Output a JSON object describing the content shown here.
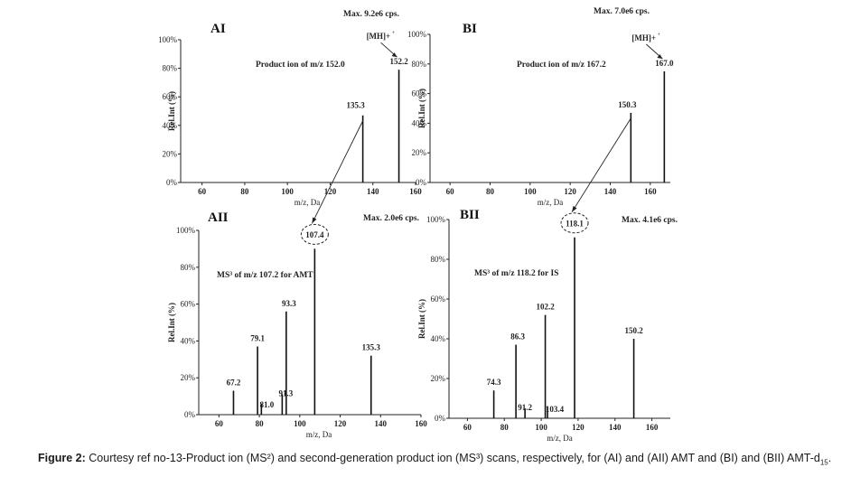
{
  "chart_data": [
    {
      "type": "bar",
      "panel": "AI",
      "max_label": "Max. 9.2e6 cps.",
      "title": "Product ion of m/z 152.0",
      "xlabel": "m/z, Da",
      "ylabel": "Rel.Int (%)",
      "xlim": [
        50,
        160
      ],
      "ylim": [
        0,
        100
      ],
      "xticks": [
        "60",
        "80",
        "100",
        "120",
        "140",
        "160"
      ],
      "yticks": [
        "0%",
        "20%",
        "40%",
        "60%",
        "80%",
        "100%"
      ],
      "x": [
        135.3,
        152.2
      ],
      "values": [
        47,
        79
      ],
      "labels": [
        "135.3",
        "152.2"
      ],
      "annotation": "[M+H]+"
    },
    {
      "type": "bar",
      "panel": "BI",
      "max_label": "Max. 7.0e6 cps.",
      "title": "Product ion of m/z 167.2",
      "xlabel": "m/z, Da",
      "ylabel": "Rel.Int (%)",
      "xlim": [
        50,
        170
      ],
      "ylim": [
        0,
        100
      ],
      "xticks": [
        "60",
        "80",
        "100",
        "120",
        "140",
        "160"
      ],
      "yticks": [
        "0%",
        "20%",
        "40%",
        "60%",
        "80%",
        "100%"
      ],
      "x": [
        150.3,
        167.0
      ],
      "values": [
        47,
        75
      ],
      "labels": [
        "150.3",
        "167.0"
      ],
      "annotation": "[M+H]+"
    },
    {
      "type": "bar",
      "panel": "AII",
      "max_label": "Max. 2.0e6 cps.",
      "title": "MS³ of m/z 107.2 for AMT",
      "xlabel": "m/z, Da",
      "ylabel": "Rel.Int (%)",
      "xlim": [
        50,
        160
      ],
      "ylim": [
        0,
        100
      ],
      "xticks": [
        "60",
        "80",
        "100",
        "120",
        "140",
        "160"
      ],
      "yticks": [
        "0%",
        "20%",
        "40%",
        "60%",
        "80%",
        "100%"
      ],
      "x": [
        67.2,
        79.1,
        81.0,
        91.3,
        93.3,
        107.4,
        135.3
      ],
      "values": [
        13,
        37,
        6,
        11,
        56,
        90,
        32
      ],
      "labels": [
        "67.2",
        "79.1",
        "81.0",
        "91.3",
        "93.3",
        "107.4",
        "135.3"
      ],
      "circled": "107.4"
    },
    {
      "type": "bar",
      "panel": "BII",
      "max_label": "Max. 4.1e6 cps.",
      "title": "MS³ of m/z 118.2 for IS",
      "xlabel": "m/z, Da",
      "ylabel": "Rel.Int (%)",
      "xlim": [
        50,
        170
      ],
      "ylim": [
        0,
        100
      ],
      "xticks": [
        "60",
        "80",
        "100",
        "120",
        "140",
        "160"
      ],
      "yticks": [
        "0%",
        "20%",
        "40%",
        "60%",
        "80%",
        "100%"
      ],
      "x": [
        74.3,
        86.3,
        91.2,
        102.2,
        103.4,
        118.1,
        150.2
      ],
      "values": [
        14,
        37,
        5,
        52,
        6,
        91,
        40
      ],
      "labels": [
        "74.3",
        "86.3",
        "91.2",
        "102.2",
        "103.4",
        "118.1",
        "150.2"
      ],
      "circled": "118.1"
    }
  ],
  "caption": {
    "prefix": "Figure 2:",
    "text_1": " Courtesy ref no-13-Product ion (MS²) and second-generation product ion (MS³) scans, respectively, for (AI) and (AII) AMT and (BI) and (BII) AMT-d",
    "sub": "15",
    "text_2": "."
  }
}
